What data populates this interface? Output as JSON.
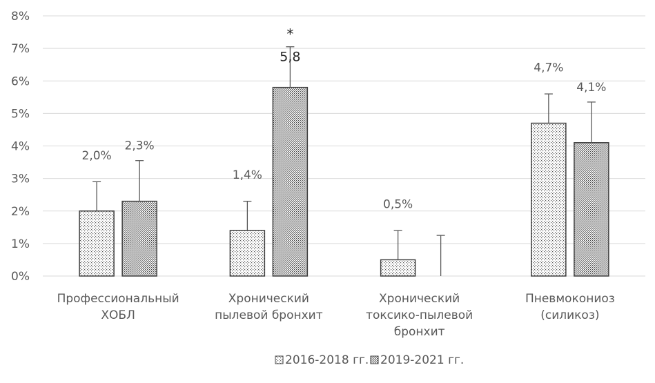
{
  "chart_data": {
    "type": "bar",
    "categories": [
      [
        "Профессиональный",
        "ХОБЛ"
      ],
      [
        "Хронический",
        "пылевой бронхит"
      ],
      [
        "Хронический",
        "токсико-пылевой",
        "бронхит"
      ],
      [
        "Пневмокониоз",
        "(силикоз)"
      ]
    ],
    "series": [
      {
        "name": "2016-2018 гг.",
        "values": [
          2.0,
          1.4,
          0.5,
          4.7
        ],
        "error_upper": [
          0.9,
          0.9,
          0.9,
          0.9
        ],
        "labels": [
          "2,0%",
          "1,4%",
          "0,5%",
          "4,7%"
        ],
        "pattern": "sparse-dots"
      },
      {
        "name": "2019-2021 гг.",
        "values": [
          2.3,
          5.8,
          0.0,
          4.1
        ],
        "error_upper": [
          1.25,
          1.25,
          1.25,
          1.25
        ],
        "labels": [
          "2,3%",
          "5,8",
          "",
          "4,1%"
        ],
        "pattern": "dense-dots"
      }
    ],
    "annotations": [
      {
        "text": "*",
        "category_index": 1,
        "series_index": 1
      }
    ],
    "ylim": [
      0,
      8
    ],
    "yticks": [
      "0%",
      "1%",
      "2%",
      "3%",
      "4%",
      "5%",
      "6%",
      "7%",
      "8%"
    ],
    "grid": true,
    "legend_position": "bottom",
    "colors": {
      "grid": "#d9d9d9",
      "text": "#595959",
      "bar_edge": "#404040",
      "error": "#595959"
    }
  }
}
